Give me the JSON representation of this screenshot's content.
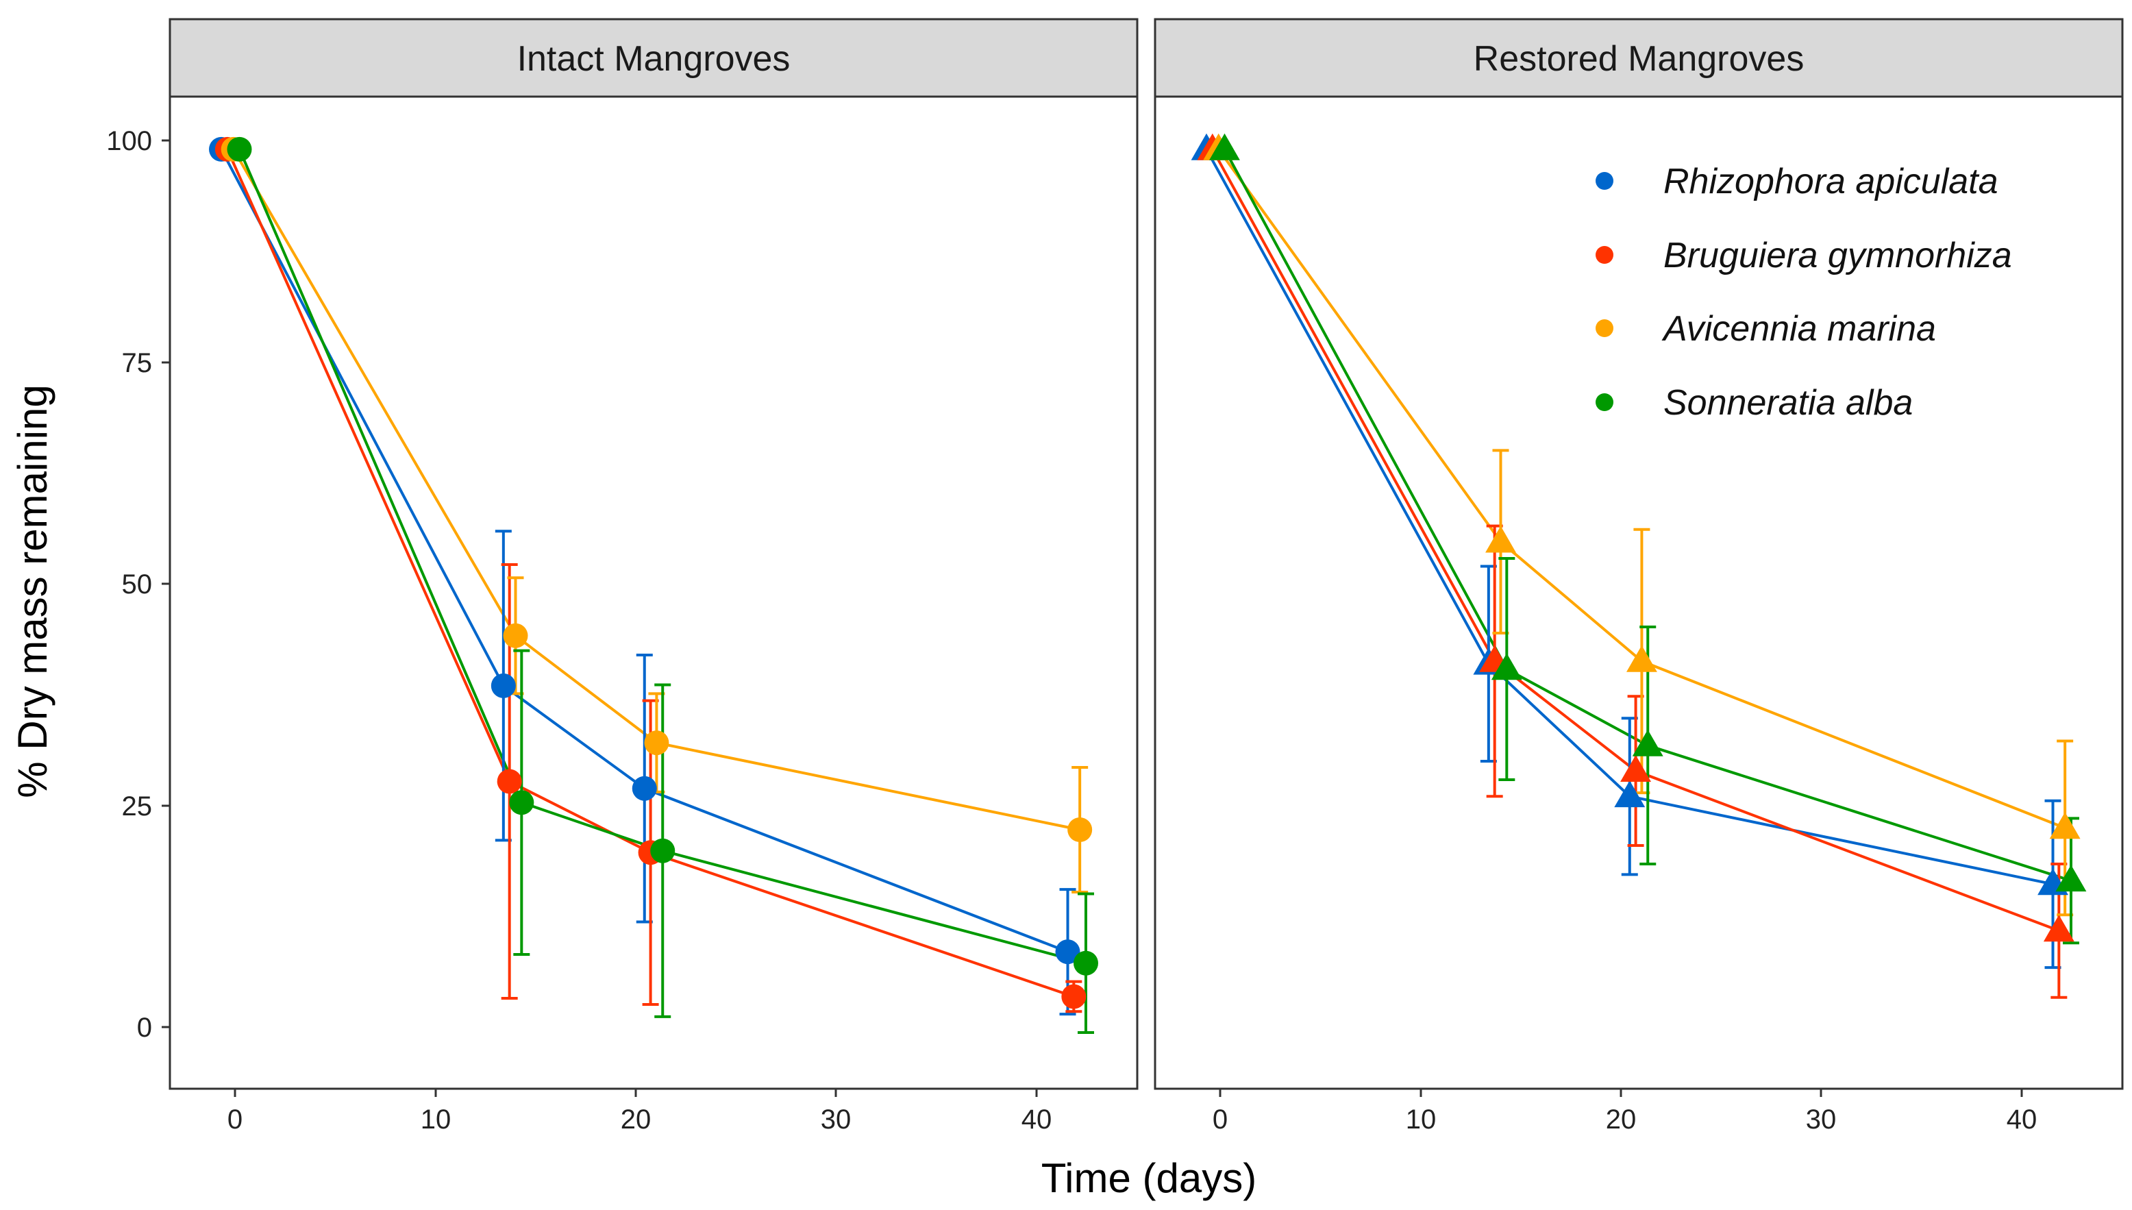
{
  "chart_data": {
    "type": "line",
    "xlabel": "Time (days)",
    "ylabel": "% Dry mass remaining",
    "xlim": [
      -3,
      45
    ],
    "ylim": [
      -7,
      106
    ],
    "x_ticks": [
      0,
      10,
      20,
      30,
      40
    ],
    "y_ticks": [
      0,
      25,
      50,
      75,
      100
    ],
    "grid": false,
    "legend": {
      "position": "top-right",
      "panel": "Restored Mangroves",
      "entries": [
        "Rhizophora apiculata",
        "Bruguiera gymnorhiza",
        "Avicennia marina",
        "Sonneratia alba"
      ]
    },
    "series_colors": {
      "Rhizophora apiculata": "#0066CC",
      "Bruguiera gymnorhiza": "#FF3300",
      "Avicennia marina": "#FFA500",
      "Sonneratia alba": "#009900"
    },
    "dodge_offsets": {
      "Rhizophora apiculata": -0.45,
      "Bruguiera gymnorhiza": -0.15,
      "Avicennia marina": 0.15,
      "Sonneratia alba": 0.45
    },
    "x": [
      0,
      14,
      21,
      42
    ],
    "panels": [
      {
        "title": "Intact Mangroves",
        "marker": "circle",
        "series": [
          {
            "name": "Rhizophora apiculata",
            "values": [
              100,
              38.9,
              27.2,
              8.6
            ],
            "error_low": [
              100,
              21.3,
              12.0,
              1.5
            ],
            "error_high": [
              100,
              56.5,
              42.4,
              15.7
            ]
          },
          {
            "name": "Bruguiera gymnorhiza",
            "values": [
              100,
              28.0,
              19.9,
              3.5
            ],
            "error_low": [
              100,
              3.3,
              2.6,
              1.8
            ],
            "error_high": [
              100,
              52.7,
              37.2,
              5.2
            ]
          },
          {
            "name": "Avicennia marina",
            "values": [
              100,
              44.6,
              32.4,
              22.5
            ],
            "error_low": [
              100,
              38.0,
              26.8,
              15.4
            ],
            "error_high": [
              100,
              51.2,
              38.0,
              29.6
            ]
          },
          {
            "name": "Sonneratia alba",
            "values": [
              100,
              25.6,
              20.1,
              7.3
            ],
            "error_low": [
              100,
              8.3,
              1.2,
              -0.6
            ],
            "error_high": [
              100,
              42.9,
              39.0,
              15.2
            ]
          }
        ]
      },
      {
        "title": "Restored Mangroves",
        "marker": "triangle",
        "series": [
          {
            "name": "Rhizophora apiculata",
            "values": [
              100,
              41.4,
              26.3,
              16.3
            ],
            "error_low": [
              100,
              30.3,
              17.4,
              6.8
            ],
            "error_high": [
              100,
              52.5,
              35.2,
              25.8
            ]
          },
          {
            "name": "Bruguiera gymnorhiza",
            "values": [
              100,
              41.7,
              29.2,
              11.0
            ],
            "error_low": [
              100,
              26.3,
              20.7,
              3.4
            ],
            "error_high": [
              100,
              57.1,
              37.7,
              18.6
            ]
          },
          {
            "name": "Avicennia marina",
            "values": [
              100,
              55.3,
              41.7,
              22.7
            ],
            "error_low": [
              100,
              44.9,
              26.7,
              12.8
            ],
            "error_high": [
              100,
              65.7,
              56.7,
              32.6
            ]
          },
          {
            "name": "Sonneratia alba",
            "values": [
              100,
              40.8,
              32.1,
              16.7
            ],
            "error_low": [
              100,
              28.2,
              18.6,
              9.6
            ],
            "error_high": [
              100,
              53.4,
              45.6,
              23.8
            ]
          }
        ]
      }
    ]
  }
}
